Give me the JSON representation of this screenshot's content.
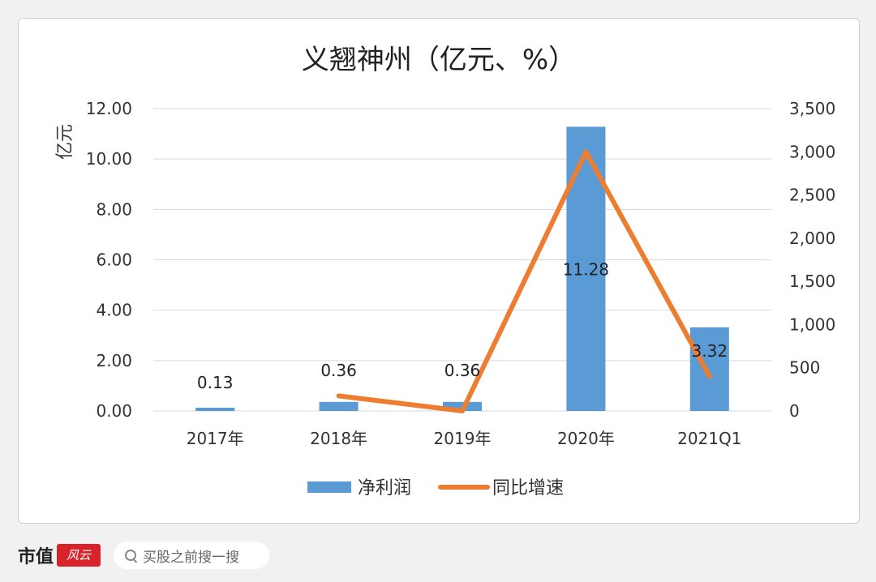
{
  "chart_data": {
    "type": "bar+line",
    "title": "义翘神州（亿元、%）",
    "ylabel_left": "亿元",
    "categories": [
      "2017年",
      "2018年",
      "2019年",
      "2020年",
      "2021Q1"
    ],
    "y_left_ticks": [
      "0.00",
      "2.00",
      "4.00",
      "6.00",
      "8.00",
      "10.00",
      "12.00"
    ],
    "y_left_range": [
      0,
      12
    ],
    "y_right_ticks": [
      "0",
      "500",
      "1,000",
      "1,500",
      "2,000",
      "2,500",
      "3,000",
      "3,500"
    ],
    "y_right_range": [
      0,
      3500
    ],
    "series": [
      {
        "name": "净利润",
        "kind": "bar",
        "axis": "left",
        "values": [
          0.13,
          0.36,
          0.36,
          11.28,
          3.32
        ],
        "labels": [
          "0.13",
          "0.36",
          "0.36",
          "11.28",
          "3.32"
        ],
        "color": "#5b9bd5"
      },
      {
        "name": "同比增速",
        "kind": "line",
        "axis": "right",
        "values": [
          null,
          175,
          0,
          3000,
          400
        ],
        "color": "#ed7d31"
      }
    ],
    "legend_position": "bottom",
    "grid": true
  },
  "footer": {
    "brand": "市值",
    "brand_logo": "风云",
    "search_placeholder": "买股之前搜一搜"
  },
  "colors": {
    "bar": "#5b9bd5",
    "line": "#ed7d31",
    "grid": "#d9d9d9"
  }
}
